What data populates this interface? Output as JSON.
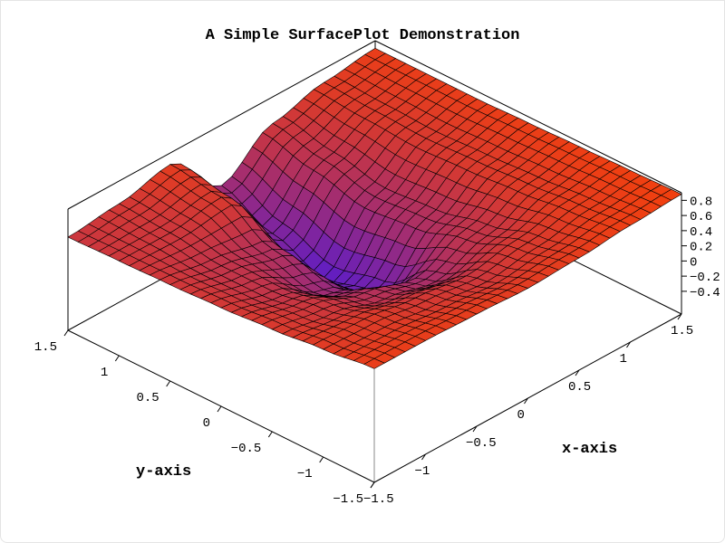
{
  "chart_data": {
    "type": "surface3d",
    "title": "A Simple SurfacePlot Demonstration",
    "xlabel": "x-axis",
    "ylabel": "y-axis",
    "zlabel": "",
    "xlim": [
      -1.5,
      1.5
    ],
    "ylim": [
      -1.5,
      1.5
    ],
    "zlim": [
      -0.7,
      0.9
    ],
    "grid": false,
    "colormap": {
      "low": "#5a1ccc",
      "high": "#f4400c"
    },
    "x": [
      -1.5,
      -1,
      -0.5,
      0,
      0.5,
      1,
      1.5
    ],
    "y": [
      -1.5,
      -1,
      -0.5,
      0,
      0.5,
      1,
      1.5
    ],
    "z": [
      [
        0.8,
        0.8,
        0.78,
        0.75,
        0.78,
        0.84,
        0.88
      ],
      [
        0.72,
        0.7,
        0.62,
        0.55,
        0.65,
        0.78,
        0.86
      ],
      [
        0.65,
        0.55,
        0.35,
        0.2,
        0.45,
        0.72,
        0.84
      ],
      [
        0.6,
        0.45,
        0.1,
        -0.3,
        0.3,
        0.68,
        0.82
      ],
      [
        0.57,
        0.45,
        0.3,
        -0.45,
        0.25,
        0.65,
        0.8
      ],
      [
        0.55,
        0.55,
        0.65,
        -0.2,
        0.4,
        0.68,
        0.8
      ],
      [
        0.53,
        0.6,
        0.75,
        0.1,
        0.55,
        0.72,
        0.8
      ]
    ],
    "xticks": [
      "−1.5",
      "−1",
      "−0.5",
      "0",
      "0.5",
      "1",
      "1.5"
    ],
    "yticks": [
      "−1.5",
      "−1",
      "−0.5",
      "0",
      "0.5",
      "1",
      "1.5"
    ],
    "zticks": [
      "−0.4",
      "−0.2",
      "0",
      "0.2",
      "0.4",
      "0.6",
      "0.8"
    ]
  }
}
